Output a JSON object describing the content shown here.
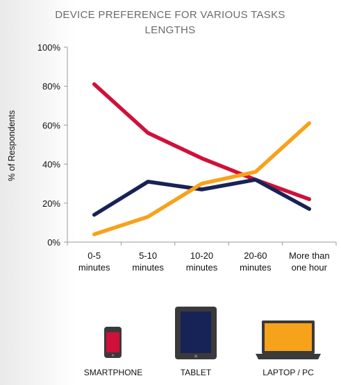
{
  "chart_data": {
    "type": "line",
    "title_lines": [
      "DEVICE PREFERENCE FOR VARIOUS TASKS",
      "LENGTHS"
    ],
    "ylabel": "% of Respondents",
    "xlabel": "",
    "categories": [
      [
        "0-5",
        "minutes"
      ],
      [
        "5-10",
        "minutes"
      ],
      [
        "10-20",
        "minutes"
      ],
      [
        "20-60",
        "minutes"
      ],
      [
        "More than",
        "one hour"
      ]
    ],
    "ylim": [
      0,
      100
    ],
    "yticks": [
      0,
      20,
      40,
      60,
      80,
      100
    ],
    "ytick_labels": [
      "0%",
      "20%",
      "40%",
      "60%",
      "80%",
      "100%"
    ],
    "grid": false,
    "series": [
      {
        "name": "SMARTPHONE",
        "color": "#d0103a",
        "values": [
          81,
          56,
          43,
          32,
          22
        ]
      },
      {
        "name": "TABLET",
        "color": "#172357",
        "values": [
          14,
          31,
          27,
          32,
          17
        ]
      },
      {
        "name": "LAPTOP / PC",
        "color": "#f7a21b",
        "values": [
          4,
          13,
          30,
          36,
          61
        ]
      }
    ]
  },
  "legend_icons": [
    {
      "name": "SMARTPHONE",
      "icon": "smartphone-icon",
      "color": "#d0103a"
    },
    {
      "name": "TABLET",
      "icon": "tablet-icon",
      "color": "#172357"
    },
    {
      "name": "LAPTOP / PC",
      "icon": "laptop-icon",
      "color": "#f7a21b"
    }
  ]
}
